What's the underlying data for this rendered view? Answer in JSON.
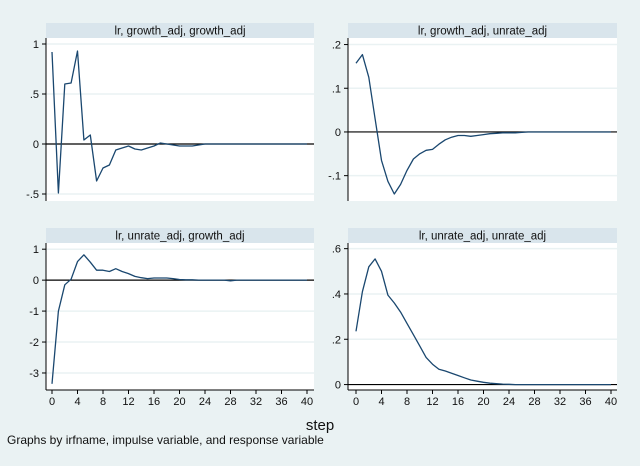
{
  "colors": {
    "background": "#eaf2f3",
    "plot": "#ffffff",
    "header": "#d9e5ec",
    "line": "#1a476f",
    "zero_line": "#000000",
    "grid": "#eaf2f3"
  },
  "xlabel": "step",
  "note": "Graphs by irfname, impulse variable, and response variable",
  "chart_data": [
    {
      "type": "line",
      "title": "lr, growth_adj, growth_adj",
      "x": [
        0,
        1,
        2,
        3,
        4,
        5,
        6,
        7,
        8,
        9,
        10,
        11,
        12,
        13,
        14,
        15,
        16,
        17,
        18,
        19,
        20,
        21,
        22,
        23,
        24,
        25,
        26,
        27,
        28,
        29,
        30,
        31,
        32,
        33,
        34,
        35,
        36,
        37,
        38,
        39,
        40
      ],
      "values": [
        0.92,
        -0.49,
        0.6,
        0.61,
        0.93,
        0.04,
        0.09,
        -0.37,
        -0.24,
        -0.21,
        -0.06,
        -0.04,
        -0.02,
        -0.05,
        -0.06,
        -0.04,
        -0.02,
        0.01,
        0,
        -0.01,
        -0.02,
        -0.02,
        -0.02,
        -0.01,
        0,
        0,
        0,
        0,
        0,
        0,
        0,
        0,
        0,
        0,
        0,
        0,
        0,
        0,
        0,
        0,
        0
      ],
      "yticks": [
        {
          "v": 1,
          "label": "1"
        },
        {
          "v": 0.5,
          "label": ".5"
        },
        {
          "v": 0,
          "label": "0"
        },
        {
          "v": -0.5,
          "label": "-.5"
        }
      ],
      "ylim": [
        -0.57,
        1.06
      ],
      "xticks": [],
      "grid": true
    },
    {
      "type": "line",
      "title": "lr, growth_adj, unrate_adj",
      "x": [
        0,
        1,
        2,
        3,
        4,
        5,
        6,
        7,
        8,
        9,
        10,
        11,
        12,
        13,
        14,
        15,
        16,
        17,
        18,
        19,
        20,
        21,
        22,
        23,
        24,
        25,
        26,
        27,
        28,
        29,
        30,
        31,
        32,
        33,
        34,
        35,
        36,
        37,
        38,
        39,
        40
      ],
      "values": [
        0.157,
        0.177,
        0.125,
        0.03,
        -0.065,
        -0.113,
        -0.142,
        -0.12,
        -0.088,
        -0.062,
        -0.05,
        -0.042,
        -0.04,
        -0.028,
        -0.018,
        -0.012,
        -0.008,
        -0.008,
        -0.01,
        -0.008,
        -0.006,
        -0.004,
        -0.003,
        -0.002,
        -0.002,
        -0.002,
        -0.001,
        0,
        0,
        0,
        0,
        0,
        0,
        0,
        0,
        0,
        0,
        0,
        0,
        0,
        0
      ],
      "yticks": [
        {
          "v": 0.2,
          "label": ".2"
        },
        {
          "v": 0.1,
          "label": ".1"
        },
        {
          "v": 0,
          "label": "0"
        },
        {
          "v": -0.1,
          "label": "-.1"
        }
      ],
      "ylim": [
        -0.158,
        0.215
      ],
      "xticks": [],
      "grid": true
    },
    {
      "type": "line",
      "title": "lr, unrate_adj, growth_adj",
      "x": [
        0,
        1,
        2,
        3,
        4,
        5,
        6,
        7,
        8,
        9,
        10,
        11,
        12,
        13,
        14,
        15,
        16,
        17,
        18,
        19,
        20,
        21,
        22,
        23,
        24,
        25,
        26,
        27,
        28,
        29,
        30,
        31,
        32,
        33,
        34,
        35,
        36,
        37,
        38,
        39,
        40
      ],
      "values": [
        -3.35,
        -1.0,
        -0.15,
        0.03,
        0.6,
        0.82,
        0.58,
        0.32,
        0.32,
        0.28,
        0.37,
        0.28,
        0.21,
        0.12,
        0.08,
        0.05,
        0.07,
        0.07,
        0.07,
        0.05,
        0.02,
        0.01,
        0.01,
        0,
        0,
        0,
        0,
        0,
        -0.02,
        0,
        0,
        0,
        0,
        0,
        0,
        0,
        0,
        0,
        0,
        0,
        0
      ],
      "yticks": [
        {
          "v": 1,
          "label": "1"
        },
        {
          "v": 0,
          "label": "0"
        },
        {
          "v": -1,
          "label": "-1"
        },
        {
          "v": -2,
          "label": "-2"
        },
        {
          "v": -3,
          "label": "-3"
        }
      ],
      "ylim": [
        -3.55,
        1.2
      ],
      "xticks": [
        "0",
        "4",
        "8",
        "12",
        "16",
        "20",
        "24",
        "28",
        "32",
        "36",
        "40"
      ],
      "grid": true
    },
    {
      "type": "line",
      "title": "lr, unrate_adj, unrate_adj",
      "x": [
        0,
        1,
        2,
        3,
        4,
        5,
        6,
        7,
        8,
        9,
        10,
        11,
        12,
        13,
        14,
        15,
        16,
        17,
        18,
        19,
        20,
        21,
        22,
        23,
        24,
        25,
        26,
        27,
        28,
        29,
        30,
        31,
        32,
        33,
        34,
        35,
        36,
        37,
        38,
        39,
        40
      ],
      "values": [
        0.235,
        0.41,
        0.52,
        0.555,
        0.5,
        0.395,
        0.36,
        0.32,
        0.27,
        0.22,
        0.17,
        0.12,
        0.09,
        0.068,
        0.06,
        0.05,
        0.04,
        0.03,
        0.02,
        0.015,
        0.01,
        0.006,
        0.004,
        0.002,
        0.001,
        0,
        0,
        0,
        0,
        0,
        0,
        0,
        0,
        0,
        0,
        0,
        0,
        0,
        0,
        0,
        0
      ],
      "yticks": [
        {
          "v": 0.6,
          "label": ".6"
        },
        {
          "v": 0.4,
          "label": ".4"
        },
        {
          "v": 0.2,
          "label": ".2"
        },
        {
          "v": 0,
          "label": "0"
        }
      ],
      "ylim": [
        -0.024,
        0.625
      ],
      "xticks": [
        "0",
        "4",
        "8",
        "12",
        "16",
        "20",
        "24",
        "28",
        "32",
        "36",
        "40"
      ],
      "grid": true
    }
  ]
}
